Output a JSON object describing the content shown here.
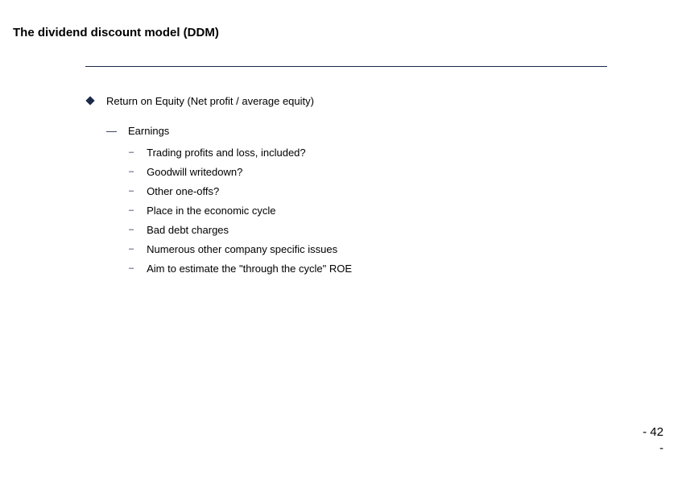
{
  "slide": {
    "title": "The dividend discount model (DDM)",
    "divider_color": "#1b2a4a",
    "bullet_color": "#1b2a4a",
    "text_color": "#000000",
    "background_color": "#ffffff"
  },
  "content": {
    "level1_item": "Return on Equity (Net profit / average equity)",
    "level2_item": "Earnings",
    "level3_items": [
      "Trading profits and loss, included?",
      "Goodwill writedown?",
      "Other one-offs?",
      "Place in the economic cycle",
      "Bad debt charges",
      "Numerous other company specific issues",
      "Aim to estimate the \"through the cycle\" ROE"
    ]
  },
  "page_number": {
    "line1": "- 42",
    "line2": "-"
  }
}
